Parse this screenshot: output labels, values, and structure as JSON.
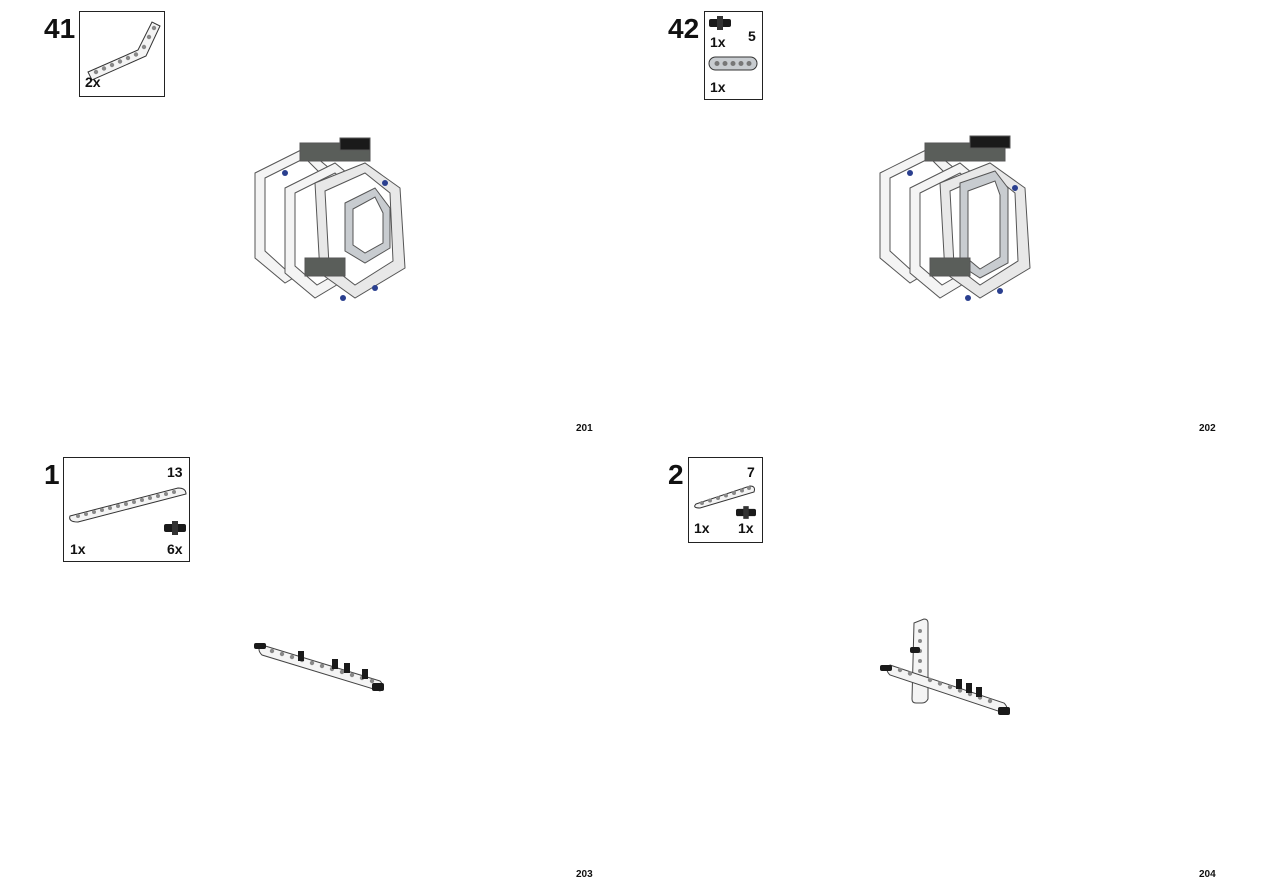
{
  "pages": [
    {
      "page_number": "201",
      "step": "41",
      "parts": [
        {
          "qty": "2x",
          "icon": "bent-beam-icon"
        }
      ]
    },
    {
      "page_number": "202",
      "step": "42",
      "parts": [
        {
          "qty": "1x",
          "icon": "black-connector-icon"
        },
        {
          "qty": "1x",
          "icon": "gray-beam-5-icon",
          "length": "5"
        }
      ]
    },
    {
      "page_number": "203",
      "step": "1",
      "parts": [
        {
          "qty": "1x",
          "icon": "white-beam-13-icon",
          "length": "13"
        },
        {
          "qty": "6x",
          "icon": "black-connector-icon"
        }
      ]
    },
    {
      "page_number": "204",
      "step": "2",
      "parts": [
        {
          "qty": "1x",
          "icon": "white-beam-7-icon",
          "length": "7"
        },
        {
          "qty": "1x",
          "icon": "black-connector-icon"
        }
      ]
    }
  ],
  "colors": {
    "beam_white": "#f4f4f4",
    "beam_gray": "#c8ccd0",
    "pin_black": "#1a1a1a",
    "pin_blue": "#2a3f8f",
    "frame_dark": "#5a5e5a"
  }
}
